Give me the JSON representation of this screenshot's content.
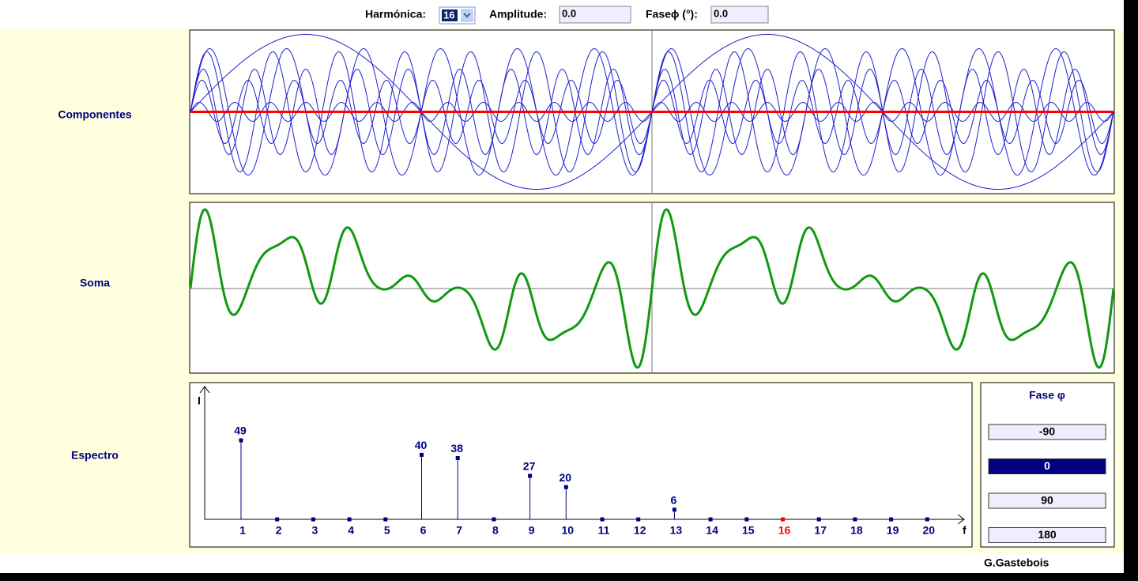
{
  "toolbar": {
    "harmonic_label": "Harmónica:",
    "harmonic_selected": "16",
    "amplitude_label": "Amplitude:",
    "amplitude_value": "0.0",
    "phase_label": "Faseϕ (°):",
    "phase_value": "0.0"
  },
  "panels": {
    "components": "Componentes",
    "sum": "Soma",
    "spectrum": "Espectro"
  },
  "spectrum": {
    "y_axis_label": "I",
    "x_axis_label": "f",
    "harmonics": [
      1,
      2,
      3,
      4,
      5,
      6,
      7,
      8,
      9,
      10,
      11,
      12,
      13,
      14,
      15,
      16,
      17,
      18,
      19,
      20
    ],
    "values": [
      49,
      0,
      0,
      0,
      0,
      40,
      38,
      0,
      27,
      20,
      0,
      0,
      6,
      0,
      0,
      0,
      0,
      0,
      0,
      0
    ],
    "selected": 16
  },
  "phase_box": {
    "title": "Fase φ",
    "buttons": [
      "-90",
      "0",
      "90",
      "180"
    ],
    "selected": "0"
  },
  "author": "G.Gastebois"
}
